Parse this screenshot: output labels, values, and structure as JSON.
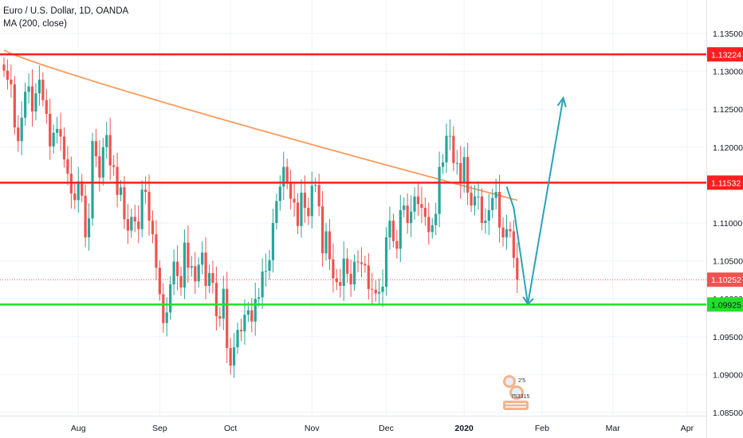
{
  "header": {
    "symbol_line": "Euro / U.S. Dollar, 1D, OANDA",
    "indicator_line": "MA (200, close)"
  },
  "colors": {
    "up": "#26a69a",
    "down": "#ef5350",
    "ma": "#ff9a5c",
    "resistance": "#ff1f1f",
    "support": "#22e02a",
    "arrow": "#29a3b8",
    "last_price": "#ef5350",
    "grid": "#f0f3fa",
    "axis_line": "#e0e3eb"
  },
  "chart_data": {
    "type": "candlestick",
    "title": "Euro / U.S. Dollar, 1D, OANDA",
    "indicator": "MA (200, close)",
    "ylim": [
      1.0825,
      1.1375
    ],
    "y_ticks": [
      "1.13500",
      "1.13000",
      "1.12500",
      "1.12000",
      "1.11500",
      "1.11000",
      "1.10500",
      "1.10000",
      "1.09500",
      "1.09000",
      "1.08500"
    ],
    "x_ticks": [
      {
        "label": "Aug",
        "bar": 21
      },
      {
        "label": "Sep",
        "bar": 44
      },
      {
        "label": "Oct",
        "bar": 64
      },
      {
        "label": "Nov",
        "bar": 87
      },
      {
        "label": "Dec",
        "bar": 108
      },
      {
        "label": "2020",
        "bar": 130
      },
      {
        "label": "Feb",
        "bar": 152
      },
      {
        "label": "Mar",
        "bar": 172
      },
      {
        "label": "Apr",
        "bar": 193
      }
    ],
    "grid": true,
    "bar_count_drawn": 146,
    "closes": [
      1.1301,
      1.1289,
      1.1283,
      1.1226,
      1.1208,
      1.1239,
      1.1273,
      1.128,
      1.1247,
      1.1271,
      1.1289,
      1.1262,
      1.1244,
      1.1201,
      1.1219,
      1.1224,
      1.1214,
      1.1184,
      1.1165,
      1.1139,
      1.113,
      1.1155,
      1.1136,
      1.1081,
      1.1106,
      1.1208,
      1.1188,
      1.116,
      1.12,
      1.1216,
      1.1176,
      1.1174,
      1.1137,
      1.1147,
      1.1105,
      1.109,
      1.1108,
      1.1102,
      1.1092,
      1.1144,
      1.1141,
      1.1103,
      1.1085,
      1.1041,
      1.1006,
      1.0968,
      1.0982,
      1.1019,
      1.1049,
      1.103,
      1.1015,
      1.1074,
      1.1041,
      1.1043,
      1.1023,
      1.1045,
      1.1061,
      1.1017,
      1.1034,
      1.1021,
      1.0977,
      1.0974,
      1.1013,
      1.0935,
      1.0912,
      1.0936,
      1.0959,
      1.0957,
      1.0979,
      1.0985,
      1.097,
      1.1,
      1.1002,
      1.1036,
      1.1037,
      1.1051,
      1.11,
      1.1129,
      1.1148,
      1.1174,
      1.1154,
      1.1132,
      1.1127,
      1.1096,
      1.114,
      1.112,
      1.1109,
      1.1149,
      1.115,
      1.1122,
      1.106,
      1.1089,
      1.1052,
      1.1027,
      1.1022,
      1.1017,
      1.1053,
      1.1033,
      1.1019,
      1.1049,
      1.1048,
      1.1046,
      1.1044,
      1.1013,
      1.1012,
      1.1007,
      1.1009,
      1.1016,
      1.1081,
      1.1103,
      1.1076,
      1.1066,
      1.1117,
      1.1123,
      1.11,
      1.1115,
      1.1135,
      1.1125,
      1.112,
      1.1108,
      1.1088,
      1.1097,
      1.1112,
      1.1174,
      1.118,
      1.1215,
      1.1215,
      1.1179,
      1.1179,
      1.1152,
      1.1187,
      1.114,
      1.1123,
      1.1135,
      1.1135,
      1.11,
      1.1103,
      1.1117,
      1.1133,
      1.1141,
      1.1094,
      1.1081,
      1.1092,
      1.1089,
      1.1054,
      1.1025
    ],
    "last_price": "1.10252",
    "ma_200": {
      "name": "MA (200, close)",
      "start": 1.1328,
      "end": 1.113
    },
    "horizontal_levels": [
      {
        "label": "1.13224",
        "value": 1.13224,
        "role": "resistance"
      },
      {
        "label": "1.11532",
        "value": 1.11532,
        "role": "resistance"
      },
      {
        "label": "1.09925",
        "value": 1.09925,
        "role": "support"
      }
    ],
    "projection_path": [
      {
        "bar": 142,
        "value": 1.1148
      },
      {
        "bar": 144,
        "value": 1.112
      },
      {
        "bar": 148,
        "value": 1.0993
      },
      {
        "bar": 158,
        "value": 1.1265
      }
    ]
  },
  "badge": {
    "icon": "tradingview-author-badge",
    "line1": "2'5",
    "line2": "753315"
  }
}
